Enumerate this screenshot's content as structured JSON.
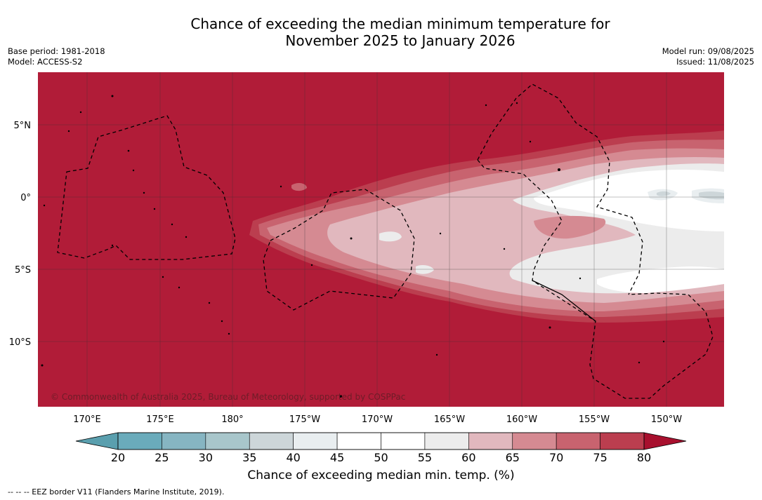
{
  "title_line1": "Chance of exceeding the median minimum temperature for",
  "title_line2": "November 2025 to January 2026",
  "meta_left": {
    "base_period": "Base period: 1981-2018",
    "model": "Model: ACCESS-S2"
  },
  "meta_right": {
    "model_run": "Model run: 09/08/2025",
    "issued": "Issued: 11/08/2025"
  },
  "map": {
    "lat_ticks": [
      "5°N",
      "0°",
      "5°S",
      "10°S"
    ],
    "lon_ticks": [
      "170°E",
      "175°E",
      "180°",
      "175°W",
      "170°W",
      "165°W",
      "160°W",
      "155°W",
      "150°W"
    ],
    "copyright": "© Commonwealth of Australia 2025, Bureau of Meteorology, supported by COSPPac"
  },
  "colorbar": {
    "ticks": [
      "20",
      "25",
      "30",
      "35",
      "40",
      "45",
      "50",
      "55",
      "60",
      "65",
      "70",
      "75",
      "80"
    ],
    "colors": [
      "#6aabbb",
      "#86b5c2",
      "#a8c6cb",
      "#cdd6d9",
      "#e9eef0",
      "#ffffff",
      "#ffffff",
      "#ececec",
      "#e1b8be",
      "#d58a92",
      "#c8636f",
      "#bb3e4f",
      "#b11c38"
    ],
    "label": "Chance of exceeding median min. temp. (%)"
  },
  "eez_note": "--  --  -- EEZ border V11 (Flanders Marine Institute, 2019)."
}
